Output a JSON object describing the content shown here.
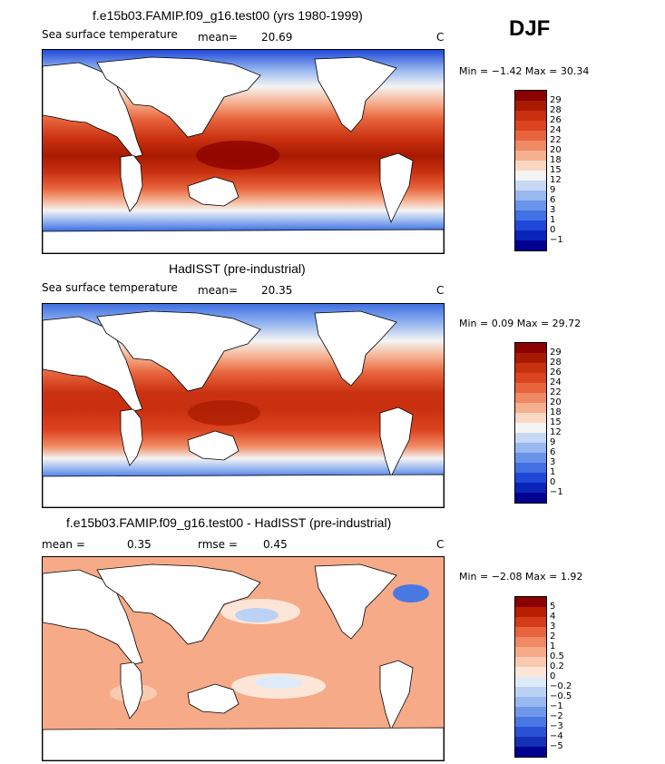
{
  "season": "DJF",
  "units": "C",
  "panels": [
    {
      "title": "f.e15b03.FAMIP.f09_g16.test00 (yrs 1980-1999)",
      "subtitle_left": "Sea surface temperature",
      "mean_label": "mean=",
      "mean_value": "20.69",
      "units": "C",
      "min_max": "Min =  −1.42 Max =  30.34",
      "scale_labels": [
        "29",
        "28",
        "26",
        "24",
        "22",
        "20",
        "18",
        "15",
        "12",
        "9",
        "6",
        "3",
        "1",
        "0",
        "−1"
      ]
    },
    {
      "title": "HadISST (pre-industrial)",
      "subtitle_left": "Sea surface temperature",
      "mean_label": "mean=",
      "mean_value": "20.35",
      "units": "C",
      "min_max": "Min =   0.09 Max =  29.72",
      "scale_labels": [
        "29",
        "28",
        "26",
        "24",
        "22",
        "20",
        "18",
        "15",
        "12",
        "9",
        "6",
        "3",
        "1",
        "0",
        "−1"
      ]
    },
    {
      "title": "f.e15b03.FAMIP.f09_g16.test00 - HadISST (pre-industrial)",
      "mean_label": "mean =",
      "mean_value": "0.35",
      "rmse_label": "rmse =",
      "rmse_value": "0.45",
      "units": "C",
      "min_max": "Min =  −2.08 Max =   1.92",
      "scale_labels": [
        "5",
        "4",
        "3",
        "2",
        "1",
        "0.5",
        "0.2",
        "0",
        "−0.2",
        "−0.5",
        "−1",
        "−2",
        "−3",
        "−4",
        "−5"
      ]
    }
  ],
  "colors": {
    "temp_scale": [
      "#8b0000",
      "#a81a00",
      "#c83010",
      "#dc4420",
      "#e8643c",
      "#f08a64",
      "#f6b090",
      "#fbd8c4",
      "#f4f4f4",
      "#c6d8f4",
      "#98b8f0",
      "#6a94ea",
      "#4070e2",
      "#2048d8",
      "#0a24b8",
      "#000090"
    ],
    "diff_scale": [
      "#8b0000",
      "#b81e00",
      "#d43c18",
      "#e8643c",
      "#f08a64",
      "#f6aa88",
      "#facab0",
      "#fde6d8",
      "#ddeaf8",
      "#bcd2f4",
      "#98b8f0",
      "#7098ea",
      "#4a78e2",
      "#2a50d6",
      "#1430b4",
      "#000090"
    ]
  }
}
